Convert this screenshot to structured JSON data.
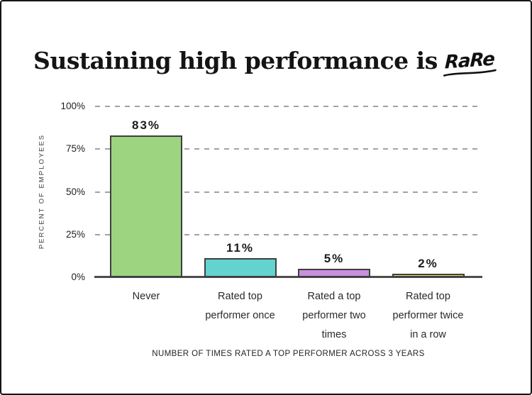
{
  "title": {
    "main": "Sustaining high performance is",
    "accent": "RaRe"
  },
  "chart_data": {
    "type": "bar",
    "title": "Sustaining high performance is RaRe",
    "categories": [
      "Never",
      "Rated top performer once",
      "Rated a top performer two times",
      "Rated top performer twice in a row"
    ],
    "category_lines": [
      [
        "Never"
      ],
      [
        "Rated top",
        "performer once"
      ],
      [
        "Rated a top",
        "performer two",
        "times"
      ],
      [
        "Rated top",
        "performer twice",
        "in a row"
      ]
    ],
    "values": [
      83,
      11,
      5,
      2
    ],
    "value_labels": [
      "83%",
      "11%",
      "5%",
      "2%"
    ],
    "bar_colors": [
      "#9cd480",
      "#63d3d0",
      "#c98fdd",
      "#f6dd64"
    ],
    "bar_border_color": "#3f3f3f",
    "xlabel": "NUMBER OF TIMES RATED A TOP PERFORMER ACROSS 3 YEARS",
    "ylabel": "PERCENT OF EMPLOYEES",
    "ylim": [
      0,
      100
    ],
    "yticks": [
      {
        "value": 0,
        "label": "0%"
      },
      {
        "value": 25,
        "label": "25%"
      },
      {
        "value": 50,
        "label": "50%"
      },
      {
        "value": 75,
        "label": "75%"
      },
      {
        "value": 100,
        "label": "100%"
      }
    ],
    "grid": {
      "style": "dashed",
      "color": "#a2a2a2",
      "lines_at": [
        25,
        50,
        75,
        100
      ]
    },
    "legend": "none",
    "accent_color": "#111111"
  }
}
